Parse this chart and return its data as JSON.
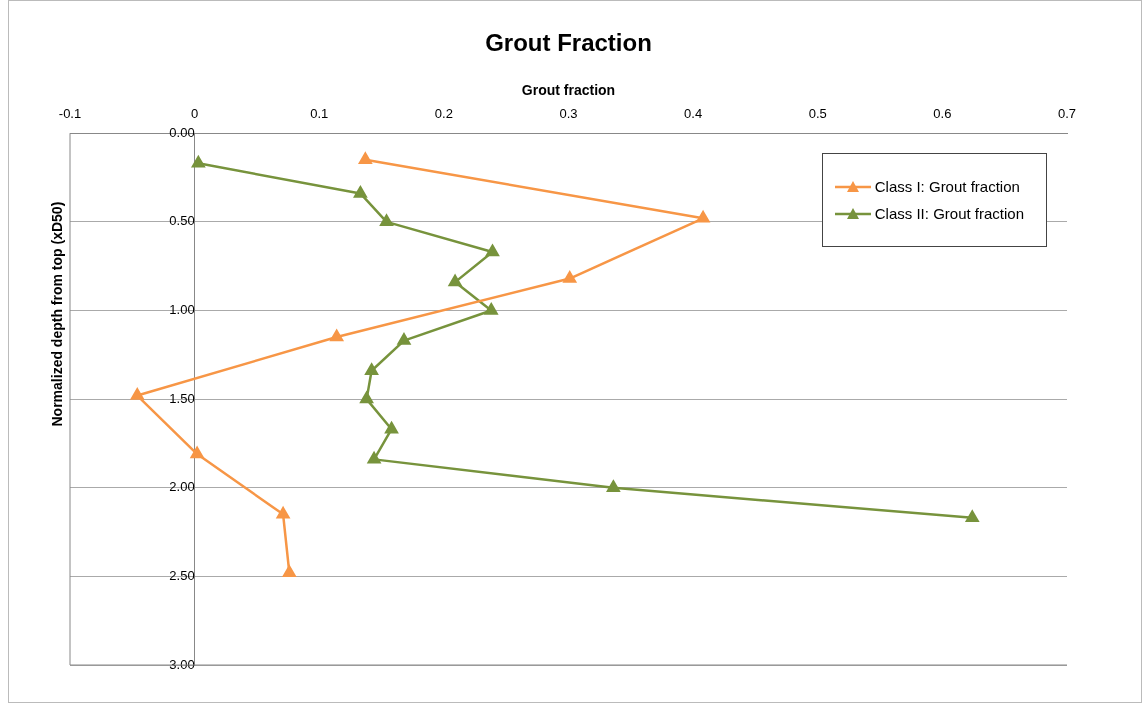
{
  "chart_data": {
    "type": "line",
    "title": "Grout Fraction",
    "xlabel": "Grout fraction",
    "ylabel": "Normalized depth from top (xD50)",
    "xlim": [
      -0.1,
      0.7
    ],
    "xticks": [
      -0.1,
      0,
      0.1,
      0.2,
      0.3,
      0.4,
      0.5,
      0.6,
      0.7
    ],
    "ylim": [
      3,
      0
    ],
    "yticks": [
      {
        "value": 0,
        "label": "0.00"
      },
      {
        "value": 0.5,
        "label": "0.50"
      },
      {
        "value": 1,
        "label": "1.00"
      },
      {
        "value": 1.5,
        "label": "1.50"
      },
      {
        "value": 2,
        "label": "2.00"
      },
      {
        "value": 2.5,
        "label": "2.50"
      },
      {
        "value": 3,
        "label": "3.00"
      }
    ],
    "grid": "y",
    "legend": "top right",
    "marker": "triangle",
    "line_style": "solid",
    "series": [
      {
        "name": "Class I: Grout fraction",
        "color": "#f79646",
        "x": [
          0.137,
          0.408,
          0.301,
          0.114,
          -0.046,
          0.002,
          0.071,
          0.076
        ],
        "values": [
          0.15,
          0.48,
          0.82,
          1.15,
          1.48,
          1.81,
          2.15,
          2.48
        ]
      },
      {
        "name": "Class II: Grout fraction",
        "color": "#77933c",
        "x": [
          0.003,
          0.133,
          0.154,
          0.239,
          0.209,
          0.238,
          0.168,
          0.142,
          0.138,
          0.158,
          0.144,
          0.336,
          0.624
        ],
        "values": [
          0.17,
          0.34,
          0.5,
          0.67,
          0.84,
          1.0,
          1.17,
          1.34,
          1.5,
          1.67,
          1.84,
          2.0,
          2.17
        ]
      }
    ]
  }
}
